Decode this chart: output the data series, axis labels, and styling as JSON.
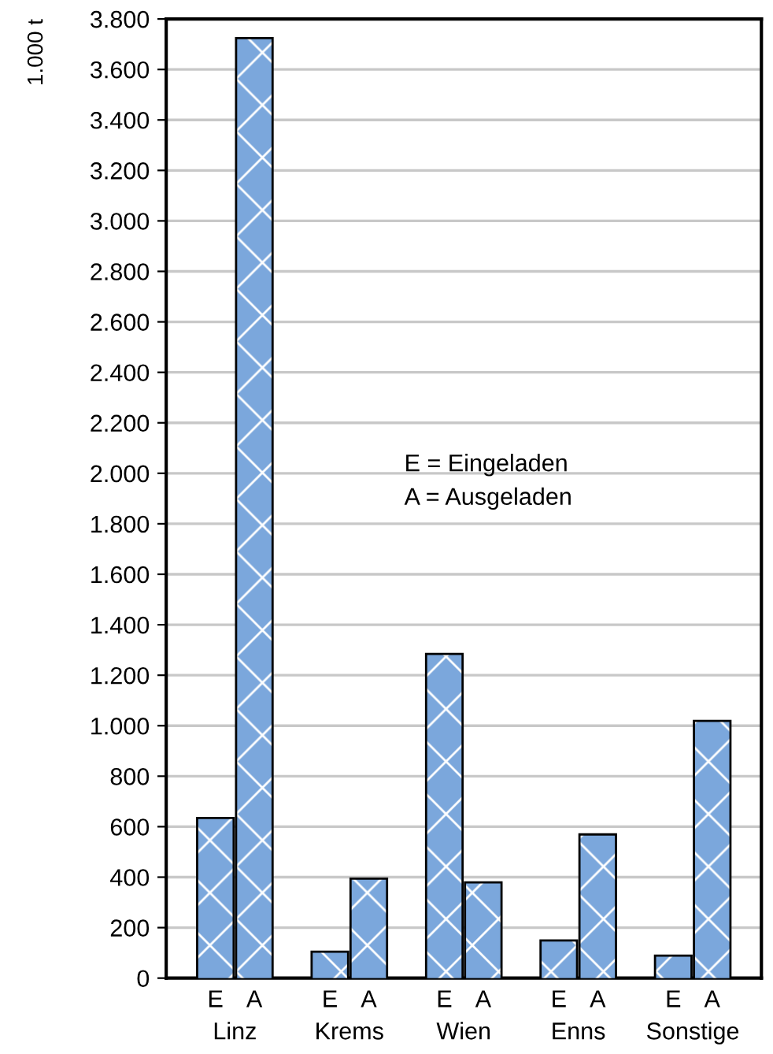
{
  "chart_data": {
    "type": "bar",
    "ylabel": "1.000 t",
    "categories": [
      "Linz",
      "Krems",
      "Wien",
      "Enns",
      "Sonstige"
    ],
    "series": [
      {
        "name": "E",
        "color": "#7ba7dc",
        "values": [
          630,
          100,
          1280,
          145,
          85
        ]
      },
      {
        "name": "A",
        "color": "#7ba7dc",
        "values": [
          3720,
          390,
          375,
          565,
          1015
        ]
      }
    ],
    "ylim": [
      0,
      3800
    ],
    "yticks": [
      0,
      200,
      400,
      600,
      800,
      {
        "value": 1000,
        "label": "1.000"
      },
      {
        "value": 1200,
        "label": "1.200"
      },
      {
        "value": 1400,
        "label": "1.400"
      },
      {
        "value": 1600,
        "label": "1.600"
      },
      {
        "value": 1800,
        "label": "1.800"
      },
      {
        "value": 2000,
        "label": "2.000"
      },
      {
        "value": 2200,
        "label": "2.200"
      },
      {
        "value": 2400,
        "label": "2.400"
      },
      {
        "value": 2600,
        "label": "2.600"
      },
      {
        "value": 2800,
        "label": "2.800"
      },
      {
        "value": 3000,
        "label": "3.000"
      },
      {
        "value": 3200,
        "label": "3.200"
      },
      {
        "value": 3400,
        "label": "3.400"
      },
      {
        "value": 3600,
        "label": "3.600"
      },
      {
        "value": 3800,
        "label": "3.800"
      }
    ],
    "grid": "y",
    "annotations": [
      "E = Eingeladen",
      "A = Ausgeladen"
    ]
  }
}
